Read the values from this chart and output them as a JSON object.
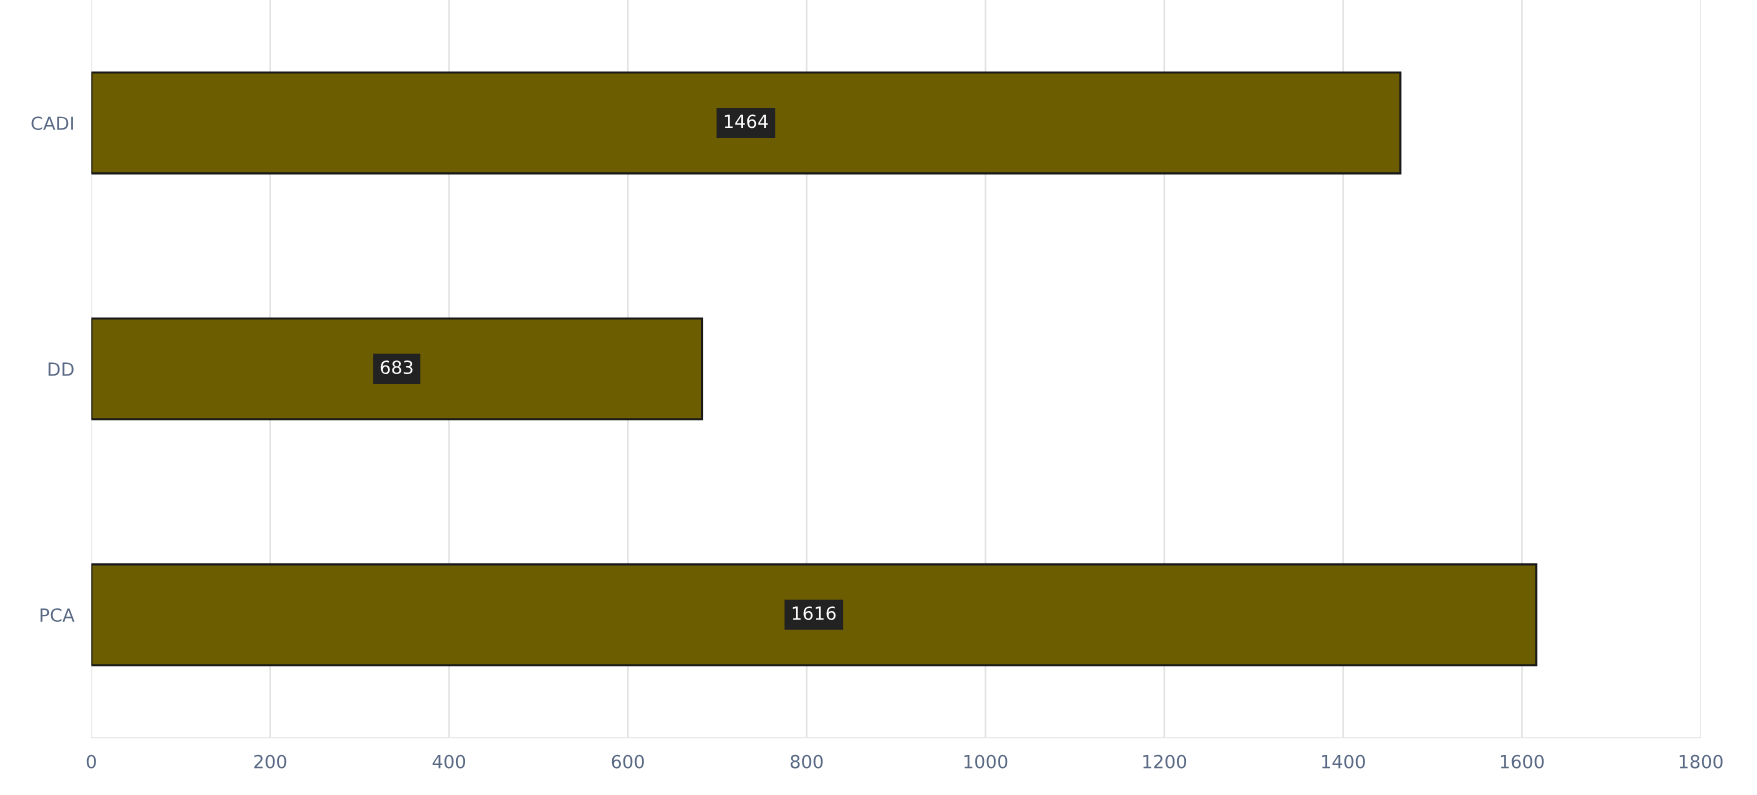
{
  "chart_data": {
    "type": "bar",
    "orientation": "horizontal",
    "categories": [
      "CADI",
      "DD",
      "PCA"
    ],
    "values": [
      1464,
      683,
      1616
    ],
    "color": "#6b5d00",
    "xlim": [
      0,
      1800
    ],
    "xticks": [
      0,
      200,
      400,
      600,
      800,
      1000,
      1200,
      1400,
      1600,
      1800
    ],
    "grid": "x",
    "data_labels": true
  }
}
